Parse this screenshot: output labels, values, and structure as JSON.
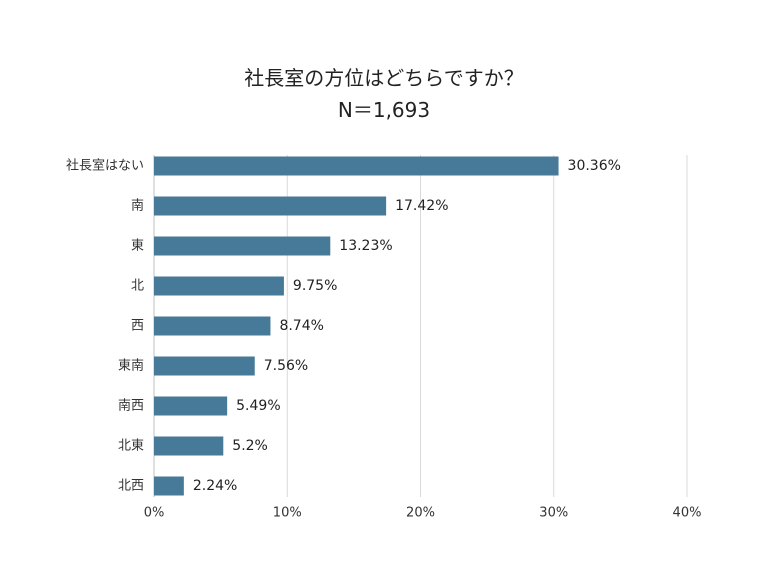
{
  "chart_data": {
    "type": "bar",
    "orientation": "horizontal",
    "title": "社長室の方位はどちらですか？",
    "subtitle": "N＝1,693",
    "categories": [
      "社長室はない",
      "南",
      "東",
      "北",
      "西",
      "東南",
      "南西",
      "北東",
      "北西"
    ],
    "values": [
      30.36,
      17.42,
      13.23,
      9.75,
      8.74,
      7.56,
      5.49,
      5.2,
      2.24
    ],
    "value_labels": [
      "30.36%",
      "17.42%",
      "13.23%",
      "9.75%",
      "8.74%",
      "7.56%",
      "5.49%",
      "5.2%",
      "2.24%"
    ],
    "xlim": [
      0,
      40
    ],
    "xticks": [
      0,
      10,
      20,
      30,
      40
    ],
    "xtick_labels": [
      "0%",
      "10%",
      "20%",
      "30%",
      "40%"
    ],
    "xlabel": "",
    "ylabel": "",
    "grid": true,
    "legend": "none",
    "bar_color": "#477a98",
    "grid_color": "#d9d9d9"
  }
}
